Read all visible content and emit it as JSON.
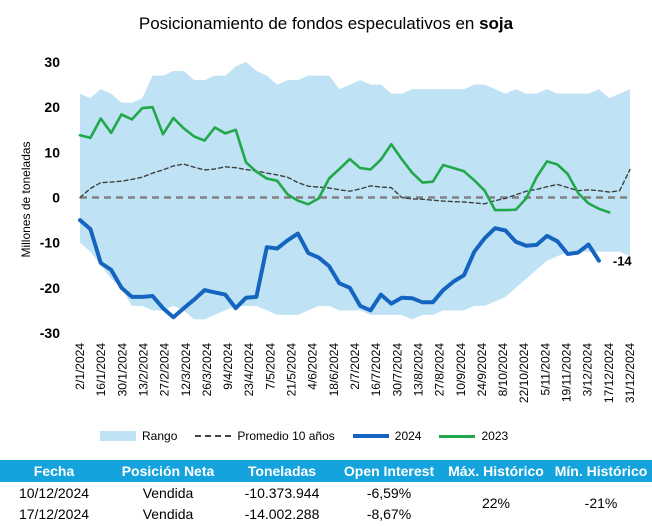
{
  "title": {
    "prefix": "Posicionamiento de fondos especulativos en",
    "highlight": "soja"
  },
  "legend": {
    "range": "Rango",
    "avg": "Promedio 10 años",
    "y2024": "2024",
    "y2023": "2023"
  },
  "colors": {
    "range": "#bfe3f4",
    "avg": "#404040",
    "y2024": "#1565c0",
    "y2023": "#20a84a",
    "header": "#14a3dc",
    "zero": "#808080"
  },
  "chart_data": {
    "type": "line",
    "ylabel": "Millones de toneladas",
    "ylim": [
      -30,
      30
    ],
    "yticks": [
      30,
      20,
      10,
      0,
      -10,
      -20,
      -30
    ],
    "x_tick_labels": [
      "2/1/2024",
      "16/1/2024",
      "30/1/2024",
      "13/2/2024",
      "27/2/2024",
      "12/3/2024",
      "26/3/2024",
      "9/4/2024",
      "23/4/2024",
      "7/5/2024",
      "21/5/2024",
      "4/6/2024",
      "18/6/2024",
      "2/7/2024",
      "16/7/2024",
      "30/7/2024",
      "13/8/2024",
      "27/8/2024",
      "10/9/2024",
      "24/9/2024",
      "8/10/2024",
      "22/10/2024",
      "5/11/2024",
      "19/11/2024",
      "3/12/2024",
      "17/12/2024",
      "31/12/2024"
    ],
    "end_label": "-14",
    "series": [
      {
        "name": "Rango",
        "kind": "band",
        "upper": [
          23,
          22,
          24,
          23,
          21,
          21,
          22,
          27,
          27,
          28,
          28,
          26,
          26,
          27,
          27,
          29,
          30,
          28,
          27,
          25,
          26,
          26,
          27,
          27,
          27,
          24,
          25,
          26,
          25,
          25,
          23,
          23,
          24,
          24,
          24,
          24,
          24,
          24,
          25,
          25,
          24,
          23,
          24,
          23,
          23,
          24,
          23,
          23,
          23,
          23,
          24,
          22,
          23,
          24
        ],
        "lower": [
          -10,
          -12,
          -15,
          -18,
          -20,
          -24,
          -24,
          -25,
          -25,
          -24,
          -25,
          -27,
          -27,
          -26,
          -25,
          -24,
          -24,
          -24,
          -25,
          -26,
          -26,
          -26,
          -25,
          -24,
          -24,
          -25,
          -25,
          -25,
          -26,
          -26,
          -26,
          -26,
          -27,
          -26,
          -26,
          -25,
          -25,
          -25,
          -24,
          -24,
          -23,
          -22,
          -20,
          -18,
          -16,
          -14,
          -13,
          -12,
          -12,
          -12,
          -12,
          -12,
          -12,
          -13
        ]
      },
      {
        "name": "Promedio 10 años",
        "kind": "line",
        "values": [
          0,
          2,
          3.3,
          3.4,
          3.6,
          4,
          4.5,
          5.4,
          6.1,
          7,
          7.4,
          6.7,
          6.1,
          6.3,
          6.8,
          6.6,
          6.2,
          5.9,
          5.4,
          5,
          4.5,
          3.3,
          2.5,
          2.3,
          2.1,
          1.7,
          1.4,
          1.9,
          2.6,
          2.3,
          2.2,
          0,
          -0.3,
          -0.4,
          -0.6,
          -0.8,
          -0.9,
          -1,
          -1.2,
          -1.4,
          -0.7,
          -0.2,
          0.6,
          1.4,
          1.8,
          2.4,
          2.9,
          2.2,
          1.5,
          1.7,
          1.5,
          1.2,
          1.5,
          6.2
        ]
      },
      {
        "name": "2024",
        "kind": "line",
        "values": [
          -5,
          -7,
          -14.5,
          -16,
          -20,
          -22,
          -22,
          -21.8,
          -24.5,
          -26.5,
          -24.5,
          -22.6,
          -20.5,
          -21,
          -21.5,
          -24.5,
          -22.2,
          -22,
          -11,
          -11.3,
          -9.5,
          -8,
          -12.3,
          -13.3,
          -15.2,
          -19,
          -20,
          -24,
          -25,
          -21.5,
          -23.5,
          -22.2,
          -22.3,
          -23.2,
          -23.2,
          -20.5,
          -18.6,
          -17.2,
          -12,
          -9,
          -6.8,
          -7.3,
          -9.8,
          -10.7,
          -10.5,
          -8.5,
          -9.7,
          -12.5,
          -12.2,
          -10.4,
          -14
        ]
      },
      {
        "name": "2023",
        "kind": "line",
        "values": [
          13.8,
          13.2,
          17.5,
          14.3,
          18.4,
          17.3,
          19.8,
          20,
          14,
          17.6,
          15.3,
          13.5,
          12.6,
          15.5,
          14.2,
          15,
          7.8,
          5.7,
          4.2,
          3.7,
          0.7,
          -0.7,
          -1.5,
          -0.2,
          4.2,
          6.3,
          8.5,
          6.5,
          6.2,
          8.4,
          11.8,
          8.5,
          5.5,
          3.3,
          3.5,
          7.2,
          6.5,
          5.8,
          3.8,
          1.5,
          -2.8,
          -2.8,
          -2.7,
          -0.2,
          4.5,
          8,
          7.3,
          5.2,
          1,
          -1.3,
          -2.5,
          -3.3
        ]
      }
    ]
  },
  "table": {
    "headers": [
      "Fecha",
      "Posición Neta",
      "Toneladas",
      "Open Interest",
      "Máx. Histórico",
      "Mín. Histórico"
    ],
    "rows": [
      [
        "10/12/2024",
        "Vendida",
        "-10.373.944",
        "-6,59%"
      ],
      [
        "17/12/2024",
        "Vendida",
        "-14.002.288",
        "-8,67%"
      ]
    ],
    "max_hist": "22%",
    "min_hist": "-21%"
  }
}
